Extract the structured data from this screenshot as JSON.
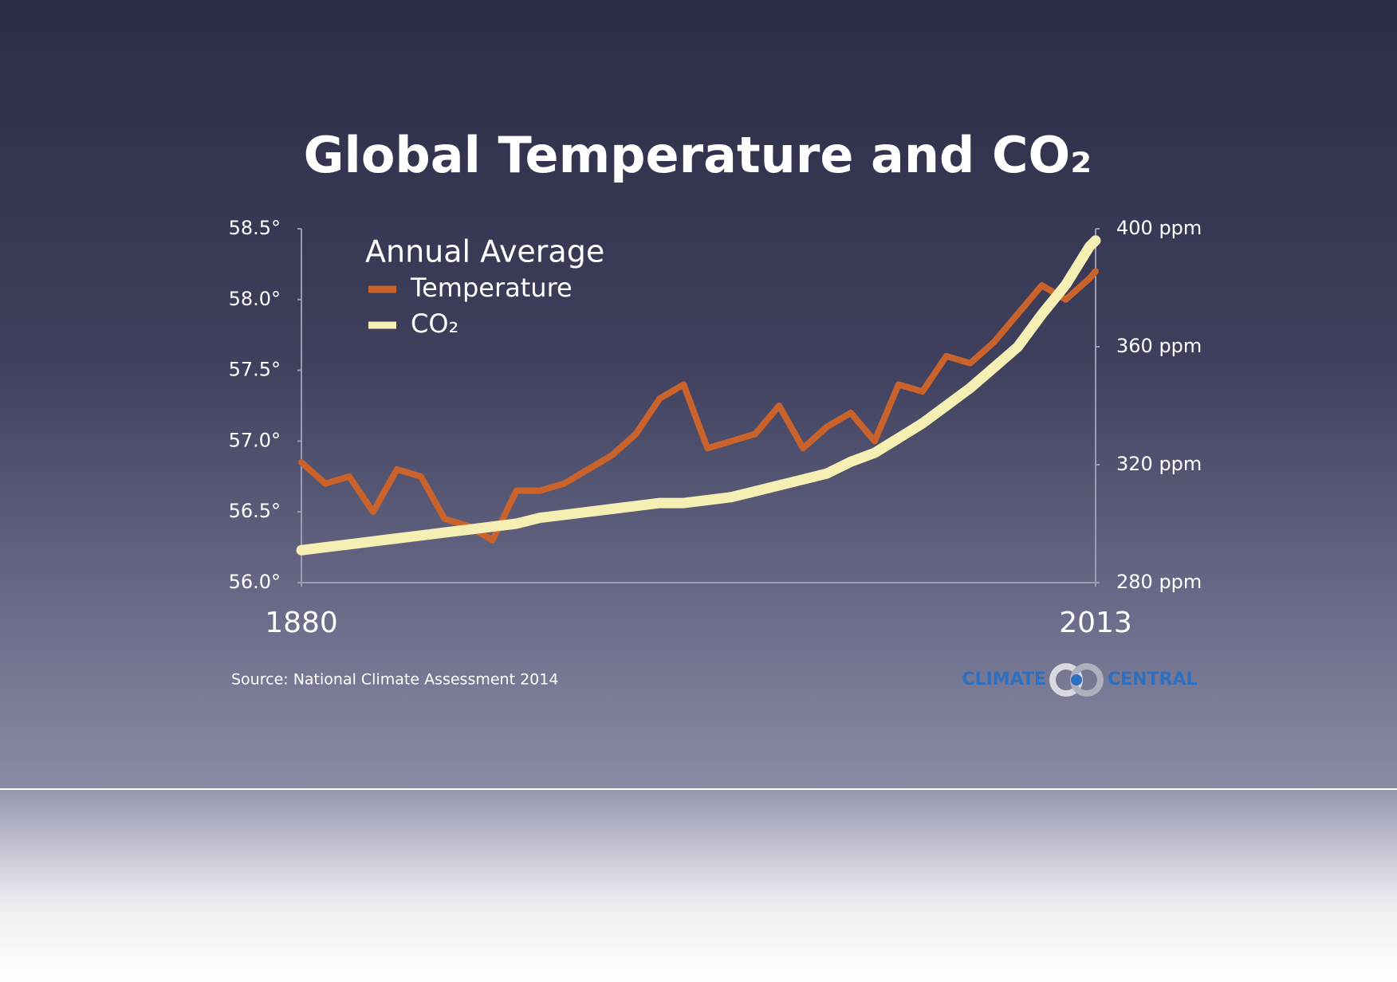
{
  "chart_data": {
    "type": "line",
    "title": "Global Temperature and CO₂",
    "legend_title": "Annual Average",
    "source": "Source: National Climate Assessment 2014",
    "logo": [
      "CLIMATE",
      "CENTRAL"
    ],
    "x": [
      1880,
      1884,
      1888,
      1892,
      1896,
      1900,
      1904,
      1908,
      1912,
      1916,
      1920,
      1924,
      1928,
      1932,
      1936,
      1940,
      1944,
      1948,
      1952,
      1956,
      1960,
      1964,
      1968,
      1972,
      1976,
      1980,
      1984,
      1988,
      1992,
      1996,
      2000,
      2004,
      2008,
      2012,
      2013
    ],
    "xlim": [
      1880,
      2013
    ],
    "xticks": [
      1880,
      2013
    ],
    "ylim": [
      56.0,
      58.5
    ],
    "yticks": [
      {
        "value": 56.0,
        "label": "56.0°"
      },
      {
        "value": 56.5,
        "label": "56.5°"
      },
      {
        "value": 57.0,
        "label": "57.0°"
      },
      {
        "value": 57.5,
        "label": "57.5°"
      },
      {
        "value": 58.0,
        "label": "58.0°"
      },
      {
        "value": 58.5,
        "label": "58.5°"
      }
    ],
    "y2lim": [
      280,
      400
    ],
    "y2ticks": [
      {
        "value": 280,
        "label": "280 ppm"
      },
      {
        "value": 320,
        "label": "320 ppm"
      },
      {
        "value": 360,
        "label": "360 ppm"
      },
      {
        "value": 400,
        "label": "400 ppm"
      }
    ],
    "series": [
      {
        "name": "Temperature",
        "color": "#c9622b",
        "values": [
          56.85,
          56.7,
          56.75,
          56.5,
          56.8,
          56.75,
          56.45,
          56.4,
          56.3,
          56.65,
          56.65,
          56.7,
          56.8,
          56.9,
          57.05,
          57.3,
          57.4,
          56.95,
          57.0,
          57.05,
          57.25,
          56.95,
          57.1,
          57.2,
          57.0,
          57.4,
          57.35,
          57.6,
          57.55,
          57.7,
          57.9,
          58.1,
          58.0,
          58.15,
          58.2
        ]
      },
      {
        "name": "CO₂",
        "color": "#f6efb4",
        "axis": "y2",
        "values": [
          291,
          292,
          293,
          294,
          295,
          296,
          297,
          298,
          299,
          300,
          302,
          303,
          304,
          305,
          306,
          307,
          307,
          308,
          309,
          311,
          313,
          315,
          317,
          321,
          324,
          329,
          334,
          340,
          346,
          353,
          360,
          371,
          381,
          394,
          396
        ]
      }
    ]
  }
}
